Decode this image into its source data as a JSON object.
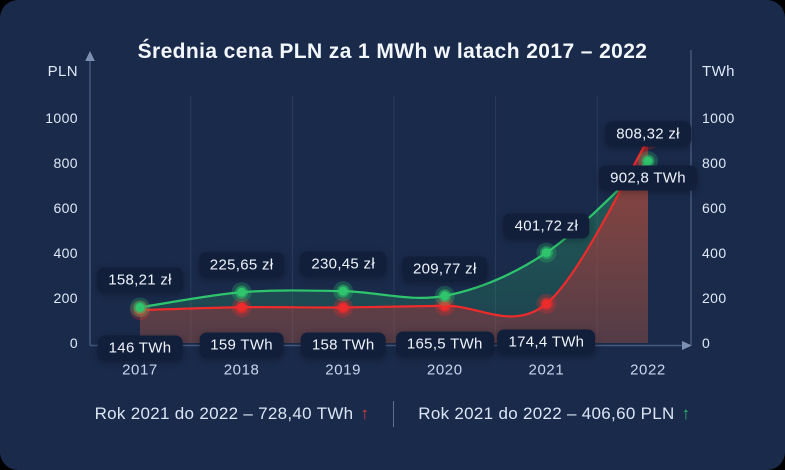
{
  "title": "Średnia cena PLN za 1 MWh w latach 2017 – 2022",
  "axes": {
    "left_unit": "PLN",
    "right_unit": "TWh",
    "ticks": [
      "1000",
      "800",
      "600",
      "400",
      "200",
      "0"
    ],
    "tick_values": [
      1000,
      800,
      600,
      400,
      200,
      0
    ]
  },
  "chart_data": {
    "type": "line",
    "title": "Średnia cena PLN za 1 MWh w latach 2017 – 2022",
    "categories": [
      "2017",
      "2018",
      "2019",
      "2020",
      "2021",
      "2022"
    ],
    "series": [
      {
        "name": "cena-pln-za-mwh",
        "color": "#2fc56d",
        "values": [
          158.21,
          225.65,
          230.45,
          209.77,
          401.72,
          808.32
        ],
        "point_labels": [
          "158,21 zł",
          "225,65 zł",
          "230,45 zł",
          "209,77 zł",
          "401,72 zł",
          "808,32 zł"
        ],
        "label_side": "above"
      },
      {
        "name": "wolumen-twh",
        "color": "#ee2b2b",
        "values": [
          146,
          159,
          158,
          165.5,
          174.4,
          902.8
        ],
        "point_labels": [
          "146 TWh",
          "159 TWh",
          "158 TWh",
          "165,5 TWh",
          "174,4 TWh",
          "902,8 TWh"
        ],
        "label_side": "below"
      }
    ],
    "ylim": [
      0,
      1000
    ],
    "grid": "vertical-between-categories",
    "area": true,
    "legend_position": "none"
  },
  "footer": {
    "twh_change": {
      "text": "Rok 2021 do 2022 – 728,40 TWh",
      "arrow": "↑",
      "arrow_color": "#e03c3c"
    },
    "pln_change": {
      "text": "Rok 2021 do 2022 – 406,60 PLN",
      "arrow": "↑",
      "arrow_color": "#2fbe66"
    }
  },
  "colors": {
    "background": "#1a2a4b",
    "label_chip": "#121f3b",
    "green_line": "#2fc56d",
    "red_line": "#ee2b2b",
    "axis": "#44597e",
    "axis_arrow": "#7c90b4",
    "grid": "rgba(140,165,205,0.14)",
    "text": "#e8eef8"
  }
}
